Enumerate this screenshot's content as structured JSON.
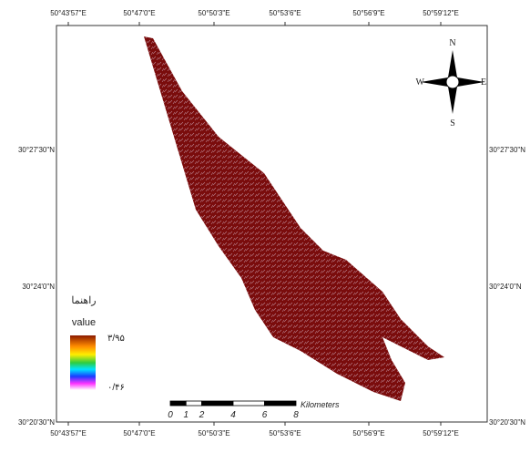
{
  "map": {
    "top_labels": [
      "50°43'57\"E",
      "50°47'0\"E",
      "50°50'3\"E",
      "50°53'6\"E",
      "50°56'9\"E",
      "50°59'12\"E"
    ],
    "bottom_labels": [
      "50°43'57\"E",
      "50°47'0\"E",
      "50°50'3\"E",
      "50°53'6\"E",
      "50°56'9\"E",
      "50°59'12\"E"
    ],
    "left_labels": [
      "30°27'30\"N",
      "30°24'0\"N",
      "30°20'30\"N"
    ],
    "right_labels": [
      "30°27'30\"N",
      "30°24'0\"N",
      "30°20'30\"N"
    ],
    "compass": {
      "north": "N",
      "east": "E",
      "south": "S",
      "west": "W"
    },
    "legend": {
      "title": "راهنما",
      "subtitle": "value",
      "high": "۳/۹۵",
      "low": "۰/۴۶"
    },
    "scale_bar": {
      "ticks": [
        0,
        1,
        2,
        4,
        6,
        8
      ],
      "unit": "Kilometers"
    }
  }
}
